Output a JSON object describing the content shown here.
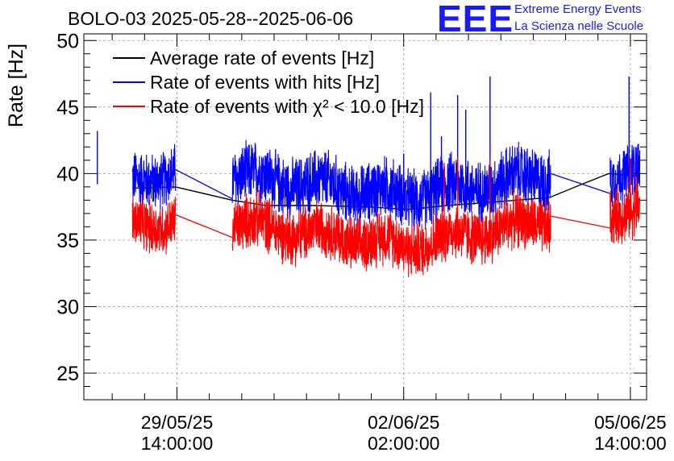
{
  "header": {
    "title": "BOLO-03 2025-05-28--2025-06-06",
    "logo_text": "EEE",
    "logo_line1": "Extreme Energy Events",
    "logo_line2": "La Scienza nelle Scuole"
  },
  "colors": {
    "average": "#000000",
    "hits": "#0000ff",
    "chi2": "#ff0000",
    "logo": "#1a1aff"
  },
  "chart_data": {
    "type": "line",
    "ylabel": "Rate [Hz]",
    "ylim": [
      23,
      50.5
    ],
    "yticks": [
      25,
      30,
      35,
      40,
      45,
      50
    ],
    "xlim_hours_from_first_label": [
      -34.5,
      174
    ],
    "xticks": [
      {
        "hours": 0,
        "label_date": "29/05/25",
        "label_time": "14:00:00"
      },
      {
        "hours": 84,
        "label_date": "02/06/25",
        "label_time": "02:00:00"
      },
      {
        "hours": 168,
        "label_date": "05/06/25",
        "label_time": "14:00:00"
      }
    ],
    "grid": true,
    "legend_position": "top-left",
    "series": [
      {
        "name": "Average rate of events [Hz]",
        "key": "average",
        "points": [
          [
            -16.5,
            38.9
          ],
          [
            -0.5,
            39.0
          ],
          [
            20.5,
            38.0
          ],
          [
            33,
            37.6
          ],
          [
            50,
            37.6
          ],
          [
            70,
            37.5
          ],
          [
            86,
            37.3
          ],
          [
            100,
            37.6
          ],
          [
            120,
            37.9
          ],
          [
            138,
            38.2
          ],
          [
            150,
            39.2
          ],
          [
            160,
            40.0
          ],
          [
            171,
            39.8
          ]
        ]
      },
      {
        "name": "Rate of events with hits [Hz]",
        "key": "hits",
        "segments": [
          {
            "start": -16.5,
            "end": -0.5,
            "base_start": 39.2,
            "base_end": 40.4,
            "spread": 2.0
          },
          {
            "start": 20.5,
            "end": 85,
            "base_start": 39.9,
            "base_end": 38.3,
            "spread": 2.2
          },
          {
            "start": 85,
            "end": 138.5,
            "base_start": 38.3,
            "base_end": 39.9,
            "spread": 2.2
          },
          {
            "start": 160.5,
            "end": 171.5,
            "base_start": 40.0,
            "base_end": 40.2,
            "spread": 2.0
          }
        ],
        "connectors": [
          [
            -0.5,
            40.3,
            20.5,
            38.1
          ],
          [
            138.5,
            40.0,
            160.5,
            38.5
          ]
        ],
        "spikes": [
          [
            -29.5,
            43.2
          ],
          [
            84,
            41.5
          ],
          [
            94,
            46.1
          ],
          [
            98,
            42.8
          ],
          [
            104,
            45.9
          ],
          [
            107,
            44.8
          ],
          [
            116,
            47.3
          ],
          [
            167.5,
            47.3
          ],
          [
            174.5,
            43.2
          ]
        ]
      },
      {
        "name": "Rate of events with χ² < 10.0 [Hz]",
        "key": "chi2",
        "segments": [
          {
            "start": -16.5,
            "end": -0.5,
            "base_start": 36.0,
            "base_end": 36.5,
            "spread": 1.9
          },
          {
            "start": 20.5,
            "end": 85,
            "base_start": 36.3,
            "base_end": 34.6,
            "spread": 2.0
          },
          {
            "start": 85,
            "end": 138.5,
            "base_start": 34.6,
            "base_end": 36.5,
            "spread": 2.0
          },
          {
            "start": 160.5,
            "end": 171.5,
            "base_start": 37.2,
            "base_end": 37.0,
            "spread": 2.0
          }
        ],
        "connectors": [
          [
            -0.5,
            36.9,
            20.5,
            35.2
          ],
          [
            138.5,
            36.8,
            160.5,
            35.9
          ]
        ],
        "spikes": [
          [
            99,
            40.8
          ],
          [
            104,
            41.2
          ],
          [
            116,
            41.0
          ],
          [
            168,
            41.2
          ],
          [
            170,
            39.8
          ]
        ]
      }
    ]
  }
}
